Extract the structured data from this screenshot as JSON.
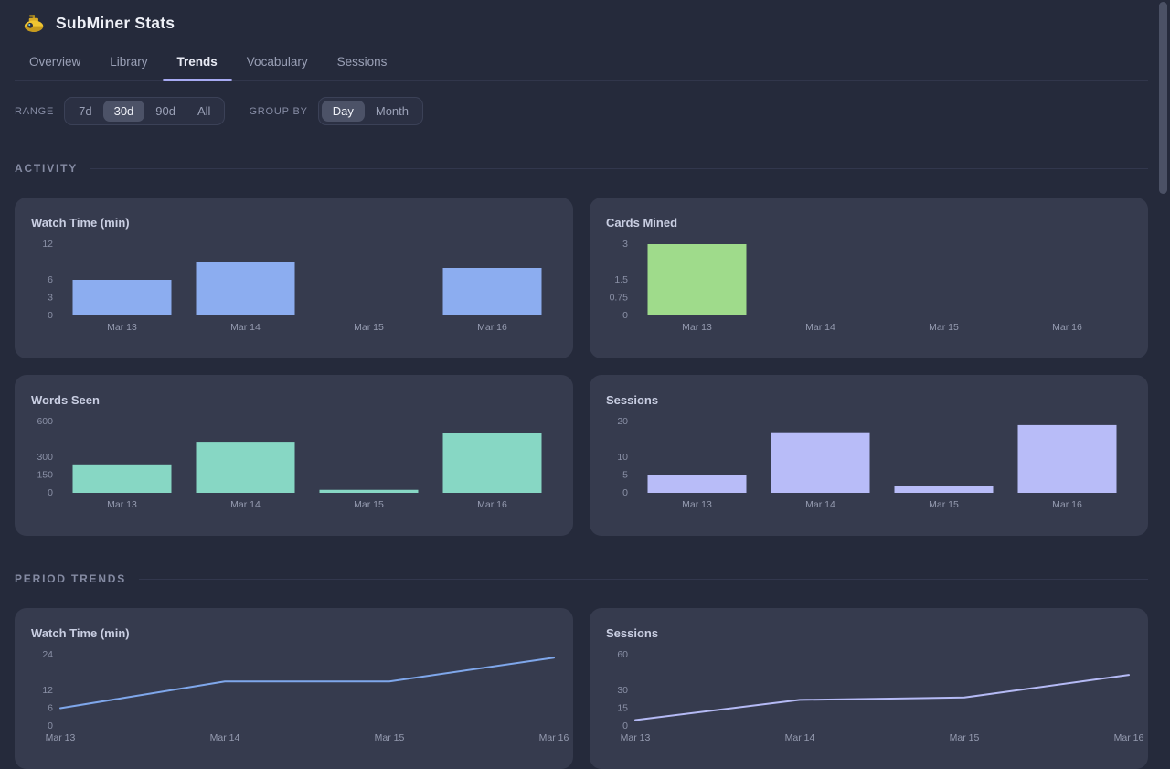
{
  "app": {
    "title": "SubMiner Stats",
    "icon": "submarine-icon"
  },
  "tabs": {
    "items": [
      {
        "label": "Overview",
        "active": false
      },
      {
        "label": "Library",
        "active": false
      },
      {
        "label": "Trends",
        "active": true
      },
      {
        "label": "Vocabulary",
        "active": false
      },
      {
        "label": "Sessions",
        "active": false
      }
    ]
  },
  "controls": {
    "range_label": "RANGE",
    "range_options": [
      "7d",
      "30d",
      "90d",
      "All"
    ],
    "range_selected": "30d",
    "groupby_label": "GROUP BY",
    "groupby_options": [
      "Day",
      "Month"
    ],
    "groupby_selected": "Day"
  },
  "sections": [
    {
      "title": "ACTIVITY"
    },
    {
      "title": "PERIOD TRENDS"
    }
  ],
  "chart_data": [
    {
      "section": 0,
      "type": "bar",
      "title": "Watch Time (min)",
      "categories": [
        "Mar 13",
        "Mar 14",
        "Mar 15",
        "Mar 16"
      ],
      "values": [
        6,
        9,
        0,
        8
      ],
      "yticks": [
        0,
        3,
        6,
        12
      ],
      "ylim": [
        0,
        12
      ],
      "color": "#8cadf0",
      "grid": false,
      "legend": "none"
    },
    {
      "section": 0,
      "type": "bar",
      "title": "Cards Mined",
      "categories": [
        "Mar 13",
        "Mar 14",
        "Mar 15",
        "Mar 16"
      ],
      "values": [
        3,
        0,
        0,
        0
      ],
      "yticks": [
        0,
        0.75,
        1.5,
        3
      ],
      "ylim": [
        0,
        3
      ],
      "color": "#9fdb8b",
      "grid": false,
      "legend": "none"
    },
    {
      "section": 0,
      "type": "bar",
      "title": "Words Seen",
      "categories": [
        "Mar 13",
        "Mar 14",
        "Mar 15",
        "Mar 16"
      ],
      "values": [
        240,
        430,
        25,
        505
      ],
      "yticks": [
        0,
        150,
        300,
        600
      ],
      "ylim": [
        0,
        600
      ],
      "color": "#87d7c4",
      "grid": false,
      "legend": "none"
    },
    {
      "section": 0,
      "type": "bar",
      "title": "Sessions",
      "categories": [
        "Mar 13",
        "Mar 14",
        "Mar 15",
        "Mar 16"
      ],
      "values": [
        5,
        17,
        2,
        19
      ],
      "yticks": [
        0,
        5,
        10,
        20
      ],
      "ylim": [
        0,
        20
      ],
      "color": "#b8bcf8",
      "grid": false,
      "legend": "none"
    },
    {
      "section": 1,
      "type": "line",
      "title": "Watch Time (min)",
      "categories": [
        "Mar 13",
        "Mar 14",
        "Mar 15",
        "Mar 16"
      ],
      "values": [
        6,
        15,
        15,
        23
      ],
      "yticks": [
        0,
        6,
        12,
        24
      ],
      "ylim": [
        0,
        24
      ],
      "color": "#7fa7eb",
      "grid": false,
      "legend": "none"
    },
    {
      "section": 1,
      "type": "line",
      "title": "Sessions",
      "categories": [
        "Mar 13",
        "Mar 14",
        "Mar 15",
        "Mar 16"
      ],
      "values": [
        5,
        22,
        24,
        43
      ],
      "yticks": [
        0,
        15,
        30,
        60
      ],
      "ylim": [
        0,
        60
      ],
      "color": "#b5baf5",
      "grid": false,
      "legend": "none"
    }
  ],
  "theme": {
    "page_bg": "#252a3b",
    "card_bg": "#363b4e",
    "accent_underline": "#a7aaf2",
    "tick_color": "#8a90a6",
    "xlabel_color": "#959bb0"
  }
}
